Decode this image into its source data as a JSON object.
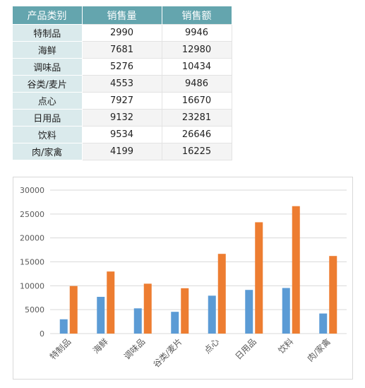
{
  "table": {
    "headers": [
      "产品类别",
      "销售量",
      "销售额"
    ],
    "rows": [
      [
        "特制品",
        "2990",
        "9946"
      ],
      [
        "海鲜",
        "7681",
        "12980"
      ],
      [
        "调味品",
        "5276",
        "10434"
      ],
      [
        "谷类/麦片",
        "4553",
        "9486"
      ],
      [
        "点心",
        "7927",
        "16670"
      ],
      [
        "日用品",
        "9132",
        "23281"
      ],
      [
        "饮料",
        "9534",
        "26646"
      ],
      [
        "肉/家禽",
        "4199",
        "16225"
      ]
    ]
  },
  "chart_data": {
    "type": "bar",
    "categories": [
      "特制品",
      "海鲜",
      "调味品",
      "谷类/麦片",
      "点心",
      "日用品",
      "饮料",
      "肉/家禽"
    ],
    "series": [
      {
        "values": [
          2990,
          7681,
          5276,
          4553,
          7927,
          9132,
          9534,
          4199
        ],
        "color": "#5b9bd5"
      },
      {
        "values": [
          9946,
          12980,
          10434,
          9486,
          16670,
          23281,
          26646,
          16225
        ],
        "color": "#ed7d31"
      }
    ],
    "y_ticks": [
      "0",
      "5000",
      "10000",
      "15000",
      "20000",
      "25000",
      "30000"
    ],
    "ylim": [
      0,
      30000
    ],
    "grid": true,
    "legend": "none",
    "gridline_color": "#d9d9d9"
  },
  "colors": {
    "header_bg": "#64a5ae",
    "category_bg": "#daeaec"
  }
}
